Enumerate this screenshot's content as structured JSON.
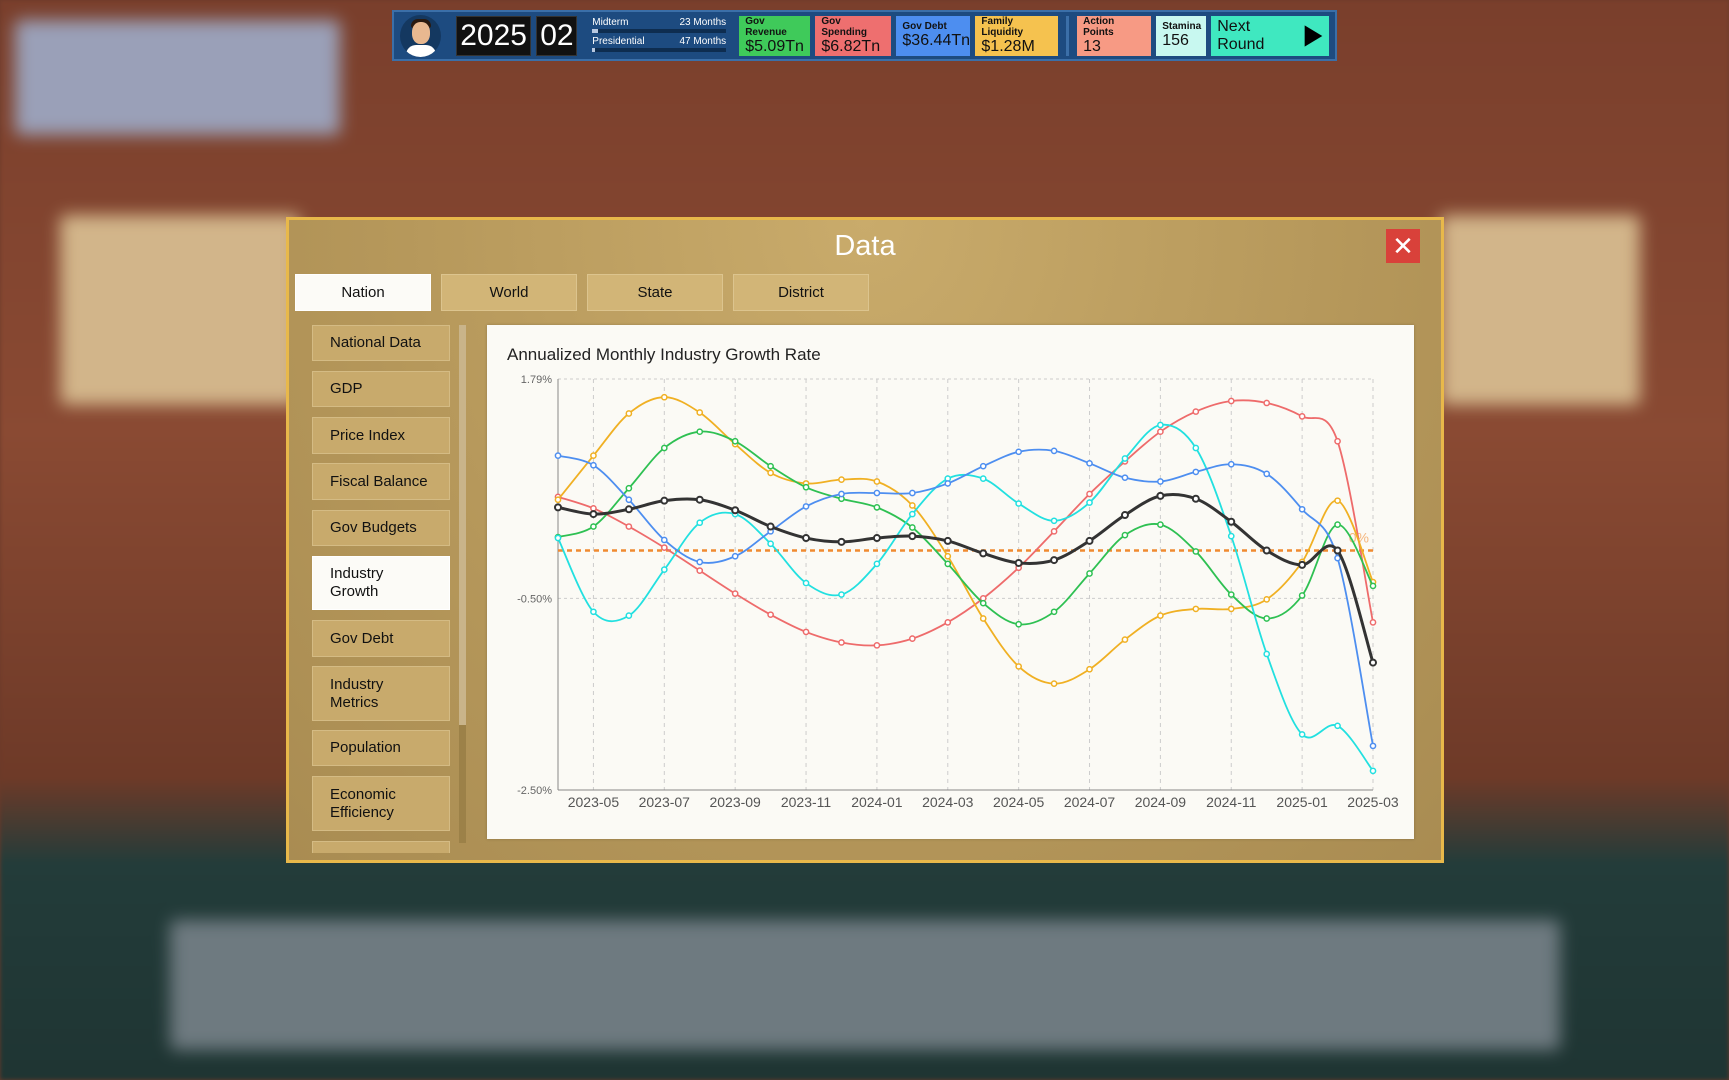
{
  "topbar": {
    "year": "2025",
    "month": "02",
    "midterm": {
      "label": "Midterm",
      "value": "23 Months",
      "progress": 0.04
    },
    "presidential": {
      "label": "Presidential",
      "value": "47 Months",
      "progress": 0.02
    },
    "stats": [
      {
        "label": "Gov Revenue",
        "value": "$5.09Tn",
        "color": "#3fca5a"
      },
      {
        "label": "Gov Spending",
        "value": "$6.82Tn",
        "color": "#ee6f6f"
      },
      {
        "label": "Gov Debt",
        "value": "$36.44Tn",
        "color": "#4d8ef0"
      },
      {
        "label": "Family Liquidity",
        "value": "$1.28M",
        "color": "#f5c24f"
      },
      {
        "label": "Action Points",
        "value": "13",
        "color": "#f79a84"
      },
      {
        "label": "Stamina",
        "value": "156",
        "color": "#c8f8f0"
      }
    ],
    "next_round": "Next Round"
  },
  "modal": {
    "title": "Data",
    "close_icon": "close-icon",
    "tabs": [
      "Nation",
      "World",
      "State",
      "District"
    ],
    "active_tab": "Nation",
    "sidebar": [
      "National Data",
      "GDP",
      "Price Index",
      "Fiscal Balance",
      "Gov Budgets",
      "Industry Growth",
      "Gov Debt",
      "Industry Metrics",
      "Population",
      "Economic Efficiency",
      ""
    ],
    "active_item": "Industry Growth"
  },
  "chart_data": {
    "type": "line",
    "title": "Annualized Monthly Industry Growth Rate",
    "x": [
      "2023-04",
      "2023-05",
      "2023-06",
      "2023-07",
      "2023-08",
      "2023-09",
      "2023-10",
      "2023-11",
      "2023-12",
      "2024-01",
      "2024-02",
      "2024-03",
      "2024-04",
      "2024-05",
      "2024-06",
      "2024-07",
      "2024-08",
      "2024-09",
      "2024-10",
      "2024-11",
      "2024-12",
      "2025-01",
      "2025-02",
      "2025-03"
    ],
    "x_tick_labels": [
      "2023-05",
      "2023-07",
      "2023-09",
      "2023-11",
      "2024-01",
      "2024-03",
      "2024-05",
      "2024-07",
      "2024-09",
      "2024-11",
      "2025-01",
      "2025-03"
    ],
    "y_tick_labels": [
      "1.79%",
      "-0.50%",
      "-2.50%"
    ],
    "ylim": [
      -2.5,
      1.79
    ],
    "grid": true,
    "legend": "none",
    "reference_line": {
      "value": 0,
      "label": "0%",
      "color": "#f08a30"
    },
    "series": [
      {
        "color": "#ee6b6b",
        "values": [
          0.56,
          0.44,
          0.25,
          0.03,
          -0.21,
          -0.45,
          -0.67,
          -0.85,
          -0.96,
          -0.99,
          -0.92,
          -0.75,
          -0.5,
          -0.18,
          0.2,
          0.59,
          0.93,
          1.24,
          1.45,
          1.56,
          1.54,
          1.4,
          1.14,
          -0.75
        ]
      },
      {
        "color": "#f0b023",
        "values": [
          0.53,
          0.99,
          1.43,
          1.6,
          1.44,
          1.11,
          0.81,
          0.7,
          0.74,
          0.72,
          0.47,
          -0.06,
          -0.71,
          -1.21,
          -1.39,
          -1.24,
          -0.93,
          -0.68,
          -0.61,
          -0.61,
          -0.51,
          -0.12,
          0.52,
          -0.33
        ]
      },
      {
        "color": "#2ec052",
        "values": [
          0.14,
          0.25,
          0.65,
          1.07,
          1.24,
          1.14,
          0.88,
          0.66,
          0.54,
          0.45,
          0.24,
          -0.14,
          -0.55,
          -0.77,
          -0.64,
          -0.24,
          0.16,
          0.27,
          -0.01,
          -0.46,
          -0.71,
          -0.47,
          0.27,
          -0.37
        ]
      },
      {
        "color": "#22e0e0",
        "values": [
          0.13,
          -0.64,
          -0.68,
          -0.2,
          0.29,
          0.38,
          0.07,
          -0.34,
          -0.46,
          -0.14,
          0.38,
          0.75,
          0.75,
          0.49,
          0.31,
          0.5,
          0.96,
          1.31,
          1.07,
          0.15,
          -1.08,
          -1.92,
          -1.83,
          -2.3
        ]
      },
      {
        "color": "#4d8ef0",
        "values": [
          0.99,
          0.89,
          0.53,
          0.11,
          -0.12,
          -0.06,
          0.2,
          0.46,
          0.59,
          0.6,
          0.6,
          0.7,
          0.88,
          1.03,
          1.04,
          0.91,
          0.76,
          0.72,
          0.82,
          0.9,
          0.8,
          0.43,
          -0.08,
          -2.04
        ]
      },
      {
        "color": "#333333",
        "values": [
          0.45,
          0.38,
          0.43,
          0.52,
          0.53,
          0.42,
          0.25,
          0.13,
          0.09,
          0.13,
          0.15,
          0.1,
          -0.03,
          -0.13,
          -0.1,
          0.1,
          0.37,
          0.57,
          0.54,
          0.3,
          0.0,
          -0.15,
          0.0,
          -1.17
        ]
      }
    ]
  }
}
